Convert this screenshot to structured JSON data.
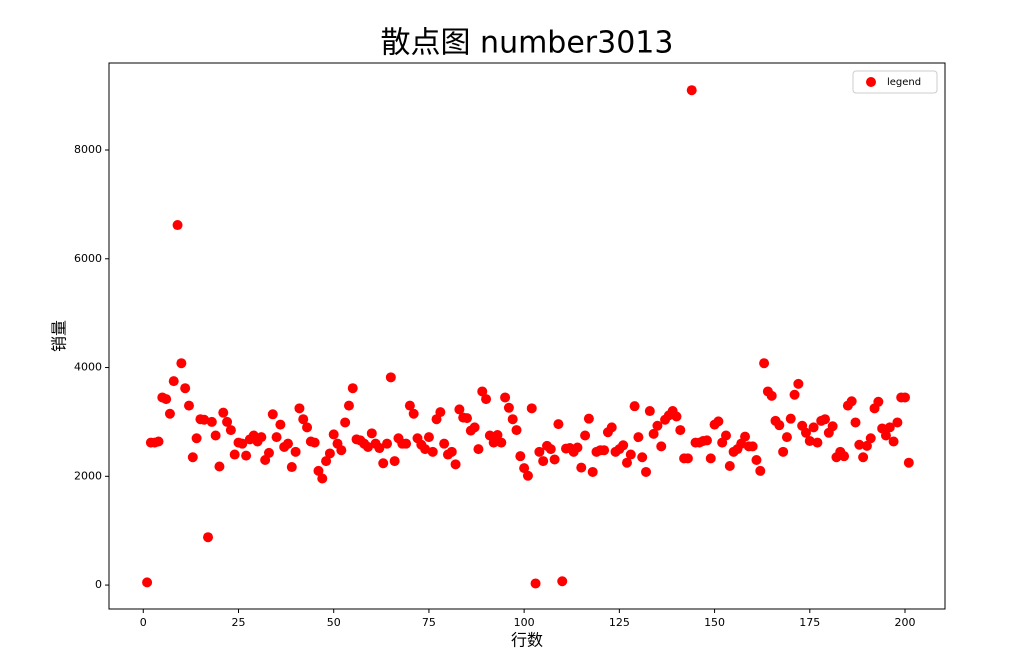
{
  "chart_data": {
    "type": "scatter",
    "title": "散点图 number3013",
    "x_label": "行数",
    "y_label": "销量",
    "xlim": [
      -9,
      210.5
    ],
    "ylim": [
      -440,
      9600
    ],
    "xticks": [
      0,
      25,
      50,
      75,
      100,
      125,
      150,
      175,
      200
    ],
    "yticks": [
      0,
      2000,
      4000,
      6000,
      8000
    ],
    "grid": false,
    "legend": "upper right",
    "series": [
      {
        "name": "legend",
        "color": "#ff0000",
        "x": [
          1,
          2,
          3,
          4,
          5,
          6,
          7,
          8,
          9,
          10,
          11,
          12,
          13,
          14,
          15,
          16,
          17,
          18,
          19,
          20,
          21,
          22,
          23,
          24,
          25,
          26,
          27,
          28,
          29,
          30,
          31,
          32,
          33,
          34,
          35,
          36,
          37,
          38,
          39,
          40,
          41,
          42,
          43,
          44,
          45,
          46,
          47,
          48,
          49,
          50,
          51,
          52,
          53,
          54,
          55,
          56,
          57,
          58,
          59,
          60,
          61,
          62,
          63,
          64,
          65,
          66,
          67,
          68,
          69,
          70,
          71,
          72,
          73,
          74,
          75,
          76,
          77,
          78,
          79,
          80,
          81,
          82,
          83,
          84,
          85,
          86,
          87,
          88,
          89,
          90,
          91,
          92,
          93,
          94,
          95,
          96,
          97,
          98,
          99,
          100,
          101,
          102,
          103,
          104,
          105,
          106,
          107,
          108,
          109,
          110,
          111,
          112,
          113,
          114,
          115,
          116,
          117,
          118,
          119,
          120,
          121,
          122,
          123,
          124,
          125,
          126,
          127,
          128,
          129,
          130,
          131,
          132,
          133,
          134,
          135,
          136,
          137,
          138,
          139,
          140,
          141,
          142,
          143,
          144,
          145,
          146,
          147,
          148,
          149,
          150,
          151,
          152,
          153,
          154,
          155,
          156,
          157,
          158,
          159,
          160,
          161,
          162,
          163,
          164,
          165,
          166,
          167,
          168,
          169,
          170,
          171,
          172,
          173,
          174,
          175,
          176,
          177,
          178,
          179,
          180,
          181,
          182,
          183,
          184,
          185,
          186,
          187,
          188,
          189,
          190,
          191,
          192,
          193,
          194,
          195,
          196,
          197,
          198,
          199,
          200,
          201
        ],
        "values": [
          50,
          2620,
          2620,
          2640,
          3450,
          3420,
          3150,
          3750,
          6620,
          4080,
          3620,
          3300,
          2350,
          2700,
          3050,
          3040,
          880,
          3000,
          2750,
          2180,
          3170,
          3000,
          2850,
          2400,
          2620,
          2600,
          2380,
          2680,
          2750,
          2640,
          2720,
          2300,
          2430,
          3140,
          2720,
          2950,
          2540,
          2600,
          2170,
          2450,
          3250,
          3050,
          2900,
          2640,
          2620,
          2100,
          1960,
          2280,
          2420,
          2770,
          2600,
          2480,
          2990,
          3300,
          3620,
          2680,
          2660,
          2600,
          2540,
          2790,
          2600,
          2520,
          2240,
          2600,
          3820,
          2280,
          2700,
          2600,
          2600,
          3300,
          3150,
          2700,
          2580,
          2500,
          2720,
          2450,
          3050,
          3180,
          2600,
          2400,
          2450,
          2220,
          3230,
          3080,
          3070,
          2840,
          2900,
          2500,
          3560,
          3420,
          2750,
          2620,
          2760,
          2620,
          3450,
          3260,
          3050,
          2850,
          2370,
          2150,
          2010,
          3250,
          30,
          2450,
          2280,
          2560,
          2500,
          2310,
          2960,
          70,
          2510,
          2520,
          2450,
          2530,
          2160,
          2750,
          3060,
          2080,
          2450,
          2480,
          2480,
          2810,
          2900,
          2450,
          2500,
          2570,
          2250,
          2400,
          3290,
          2720,
          2350,
          2080,
          3200,
          2780,
          2930,
          2550,
          3040,
          3120,
          3200,
          3100,
          2850,
          2330,
          2330,
          9100,
          2620,
          2620,
          2650,
          2660,
          2330,
          2950,
          3010,
          2620,
          2750,
          2190,
          2450,
          2500,
          2600,
          2730,
          2550,
          2550,
          2300,
          2100,
          4080,
          3560,
          3480,
          3020,
          2940,
          2450,
          2720,
          3060,
          3500,
          3700,
          2930,
          2800,
          2650,
          2900,
          2620,
          3020,
          3050,
          2800,
          2920,
          2350,
          2450,
          2370,
          3300,
          3380,
          2990,
          2580,
          2350,
          2560,
          2700,
          3250,
          3370,
          2880,
          2750,
          2900,
          2640,
          2990,
          3450,
          3450,
          2250
        ]
      }
    ]
  }
}
